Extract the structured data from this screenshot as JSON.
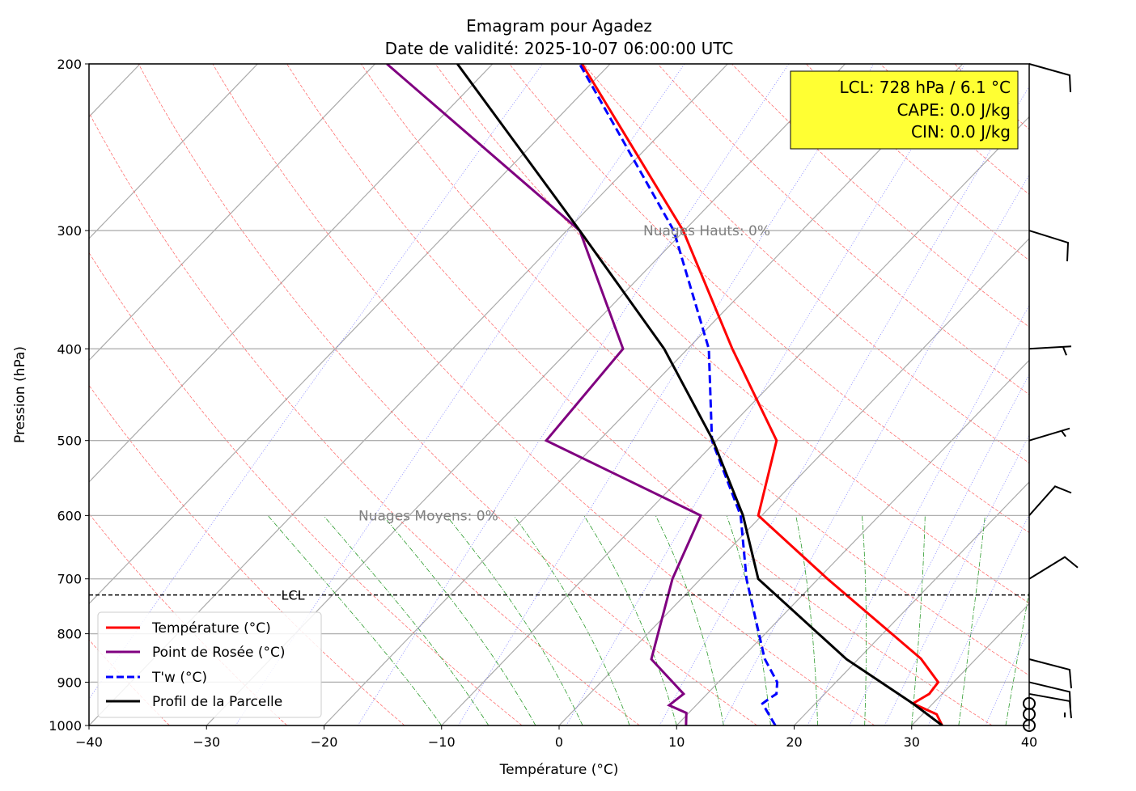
{
  "chart_data": {
    "type": "line",
    "title": "Emagram pour Agadez",
    "subtitle": "Date de validité: 2025-10-07 06:00:00 UTC",
    "xlabel": "Température (°C)",
    "ylabel": "Pression (hPa)",
    "xlim": [
      -40,
      40
    ],
    "ylim": [
      1000,
      200
    ],
    "yscale": "log",
    "xticks": [
      "−40",
      "−30",
      "−20",
      "−10",
      "0",
      "10",
      "20",
      "30",
      "40"
    ],
    "xtick_values": [
      -40,
      -30,
      -20,
      -10,
      0,
      10,
      20,
      30,
      40
    ],
    "yticks": [
      "200",
      "300",
      "400",
      "500",
      "600",
      "700",
      "800",
      "900",
      "1000"
    ],
    "ytick_values": [
      200,
      300,
      400,
      500,
      600,
      700,
      800,
      900,
      1000
    ],
    "grid": true,
    "legend_position": "lower-left",
    "series": [
      {
        "name": "Température (°C)",
        "color": "#ff0000",
        "style": "solid",
        "p": [
          1000,
          973,
          948,
          926,
          900,
          850,
          700,
          600,
          500,
          400,
          300,
          200
        ],
        "t": [
          32.6,
          31.2,
          28.3,
          28.9,
          28.7,
          25.3,
          10.8,
          -0.3,
          -4.9,
          -16.2,
          -30.1,
          -52.4
        ]
      },
      {
        "name": "Point de Rosée (°C)",
        "color": "#800080",
        "style": "solid",
        "p": [
          1000,
          970,
          952,
          926,
          851,
          700,
          600,
          500,
          400,
          300,
          200
        ],
        "t": [
          10.8,
          9.8,
          7.7,
          8.0,
          2.4,
          -2.4,
          -5.2,
          -24.5,
          -25.5,
          -38.9,
          -69.0
        ]
      },
      {
        "name": "T'w (°C)",
        "color": "#0000ff",
        "style": "dashed",
        "p": [
          1000,
          948,
          935,
          926,
          900,
          850,
          700,
          600,
          500,
          400,
          300,
          200
        ],
        "t": [
          18.4,
          15.5,
          15.7,
          15.9,
          15.0,
          12.0,
          3.9,
          -1.8,
          -10.4,
          -18.2,
          -30.9,
          -52.6
        ]
      },
      {
        "name": "Profil de la Parcelle",
        "color": "#000000",
        "style": "solid",
        "p": [
          1000,
          948,
          851,
          700,
          600,
          500,
          400,
          300,
          200
        ],
        "t": [
          32.6,
          28.3,
          19.0,
          4.9,
          -1.6,
          -10.3,
          -22.0,
          -38.9,
          -63.0
        ]
      }
    ],
    "lcl": {
      "pressure": 728,
      "label": "LCL"
    },
    "annotations": [
      {
        "text": "Nuages Hauts: 0%",
        "pressure": 300
      },
      {
        "text": "Nuages Moyens: 0%",
        "pressure": 600
      }
    ],
    "info_box": {
      "lines": [
        "LCL: 728 hPa / 6.1 °C",
        "CAPE: 0.0 J/kg",
        "CIN: 0.0 J/kg"
      ],
      "color": "#ffff33"
    },
    "wind_barb_levels": [
      200,
      300,
      400,
      500,
      600,
      700,
      851,
      900,
      926,
      948,
      973,
      1000
    ]
  }
}
